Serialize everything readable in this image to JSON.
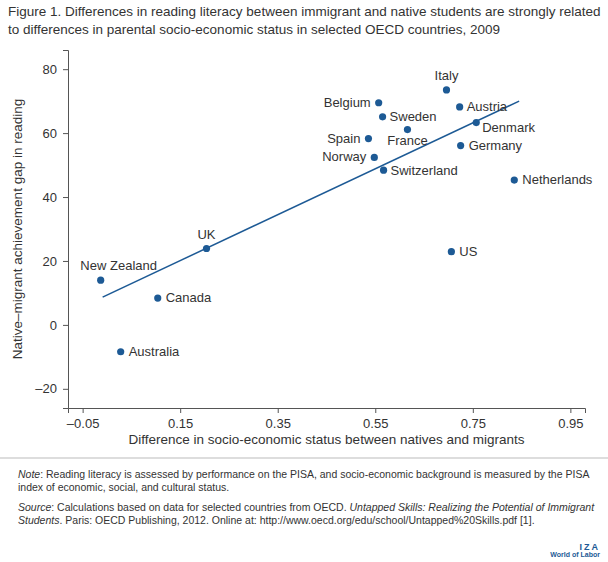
{
  "chart_data": {
    "type": "scatter",
    "title": "Figure 1. Differences in reading literacy between immigrant and native students are strongly related to differences in parental socio-economic status in selected OECD countries, 2009",
    "x_label": "Difference in socio-economic status between natives and migrants",
    "y_label": "Native–migrant achievement gap in reading",
    "labels": [
      "New Zealand",
      "Canada",
      "Australia",
      "UK",
      "Spain",
      "Belgium",
      "Norway",
      "Sweden",
      "Switzerland",
      "France",
      "Italy",
      "US",
      "Germany",
      "Denmark",
      "Austria",
      "Netherlands"
    ],
    "x": [
      -0.013,
      0.104,
      0.028,
      0.204,
      0.536,
      0.557,
      0.548,
      0.565,
      0.567,
      0.616,
      0.696,
      0.706,
      0.725,
      0.757,
      0.723,
      0.835
    ],
    "values": [
      14.0,
      8.4,
      -8.4,
      23.9,
      58.3,
      69.5,
      52.4,
      65.1,
      48.4,
      61.1,
      73.5,
      22.9,
      56.1,
      63.3,
      68.2,
      45.3
    ],
    "color": "#1d5a95",
    "marker": "circle",
    "xlim": [
      -0.08,
      0.98
    ],
    "xticks": [
      {
        "value": -0.05,
        "label": "–0.05"
      },
      0.15,
      0.35,
      0.55,
      0.75,
      0.95
    ],
    "ylim": [
      -26,
      86
    ],
    "yticks": [
      {
        "value": -20,
        "label": "–20"
      },
      0,
      20,
      40,
      60,
      80
    ],
    "grid": false,
    "trend_line": {
      "x": [
        -0.009,
        0.845
      ],
      "values": [
        8.7,
        70.0
      ]
    },
    "note": [
      "Note",
      ": Reading literacy is assessed by performance on the PISA, and socio-economic background is measured by the PISA index of economic, social, and cultural status."
    ],
    "source": [
      "Source",
      ": Calculations based on data for selected countries from OECD. ",
      "Untapped Skills: Realizing the Potential of Immigrant Students",
      ". Paris: OECD Publishing, 2012. Online at: http://www.oecd.org/edu/school/Untapped%20Skills.pdf [1]."
    ],
    "logo": [
      "IZA",
      "World of Labor"
    ]
  }
}
